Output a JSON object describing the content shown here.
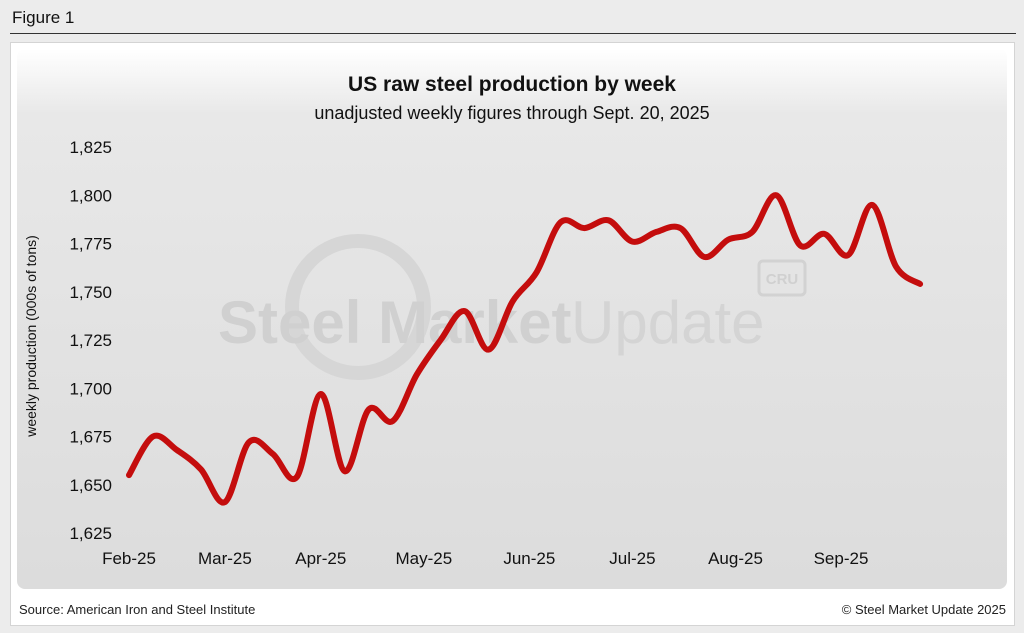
{
  "figure_label": "Figure 1",
  "source": "Source: American Iron and Steel Institute",
  "credit": "© Steel Market Update 2025",
  "watermark": {
    "text_bold": "Steel Market",
    "text_light": "Update",
    "badge": "CRU"
  },
  "colors": {
    "line": "#c40d0d",
    "plot_bg": "#e3e3e3",
    "text": "#111111",
    "watermark": "#d0d0d0"
  },
  "chart_data": {
    "type": "line",
    "title": "US raw steel production by week",
    "subtitle": "unadjusted weekly figures through Sept. 20, 2025",
    "xlabel": "",
    "ylabel": "weekly production (000s of tons)",
    "ylim": [
      1625,
      1825
    ],
    "yticks": [
      1625,
      1650,
      1675,
      1700,
      1725,
      1750,
      1775,
      1800,
      1825
    ],
    "ytick_labels": [
      "1,625",
      "1,650",
      "1,675",
      "1,700",
      "1,725",
      "1,750",
      "1,775",
      "1,800",
      "1,825"
    ],
    "xlim": [
      0,
      37
    ],
    "xticks": [
      {
        "label": "Feb-25",
        "week": 0
      },
      {
        "label": "Mar-25",
        "week": 4
      },
      {
        "label": "Apr-25",
        "week": 8
      },
      {
        "label": "May-25",
        "week": 12.3
      },
      {
        "label": "Jun-25",
        "week": 16.7
      },
      {
        "label": "Jul-25",
        "week": 21
      },
      {
        "label": "Aug-25",
        "week": 25.3
      },
      {
        "label": "Sep-25",
        "week": 29.7
      }
    ],
    "series": [
      {
        "name": "US raw steel production",
        "x": [
          0,
          1,
          2,
          3,
          4,
          5,
          6,
          7,
          8,
          9,
          10,
          11,
          12,
          13,
          14,
          15,
          16,
          17,
          18,
          19,
          20,
          21,
          22,
          23,
          24,
          25,
          26,
          27,
          28,
          29,
          30,
          31,
          32,
          33
        ],
        "values": [
          1655,
          1675,
          1668,
          1658,
          1641,
          1672,
          1666,
          1654,
          1697,
          1657,
          1689,
          1683,
          1707,
          1725,
          1740,
          1720,
          1745,
          1760,
          1786,
          1783,
          1787,
          1776,
          1781,
          1783,
          1768,
          1777,
          1781,
          1800,
          1774,
          1780,
          1769,
          1795,
          1763,
          1754
        ]
      }
    ]
  }
}
